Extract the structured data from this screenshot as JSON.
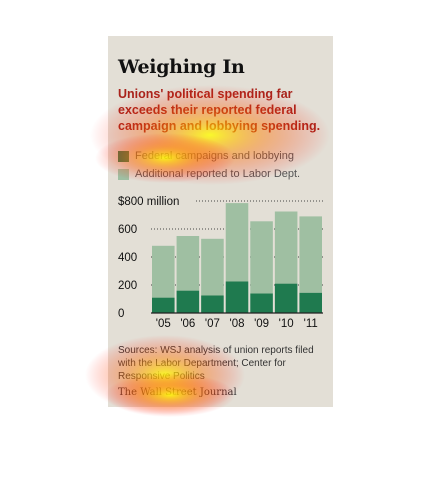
{
  "graphic": {
    "title": "Weighing In",
    "subtitle": "Unions' political spending far exceeds their reported federal campaign and lobbying spending.",
    "source": "Sources: WSJ analysis of union reports filed with the Labor Department; Center for Responsive Politics",
    "credit": "The Wall Street Journal"
  },
  "legend": [
    {
      "label": "Federal campaigns and lobbying",
      "color": "#2e7d4f"
    },
    {
      "label": "Additional reported to Labor Dept.",
      "color": "#9fbfa2"
    }
  ],
  "chart_data": {
    "type": "bar",
    "stacked": true,
    "categories": [
      "'05",
      "'06",
      "'07",
      "'08",
      "'09",
      "'10",
      "'11"
    ],
    "series": [
      {
        "name": "Federal campaigns and lobbying",
        "values": [
          110,
          160,
          125,
          225,
          140,
          210,
          145
        ],
        "color": "#1f7a4f"
      },
      {
        "name": "Additional reported to Labor Dept.",
        "values": [
          370,
          390,
          405,
          560,
          515,
          515,
          545
        ],
        "color": "#9fbfa2"
      }
    ],
    "ylim": [
      0,
      800
    ],
    "yticks": [
      0,
      200,
      400,
      600,
      800
    ],
    "ytick_labels": [
      "0",
      "200",
      "400",
      "600",
      "$800 million"
    ],
    "xlabel": "",
    "ylabel": "",
    "grid": "dotted horizontal",
    "colors": {
      "axis_text": "#111111",
      "grid": "#444444"
    }
  },
  "overlay": {
    "type": "attention heatmap",
    "colors": [
      "#ff0000",
      "#ffff00"
    ]
  }
}
